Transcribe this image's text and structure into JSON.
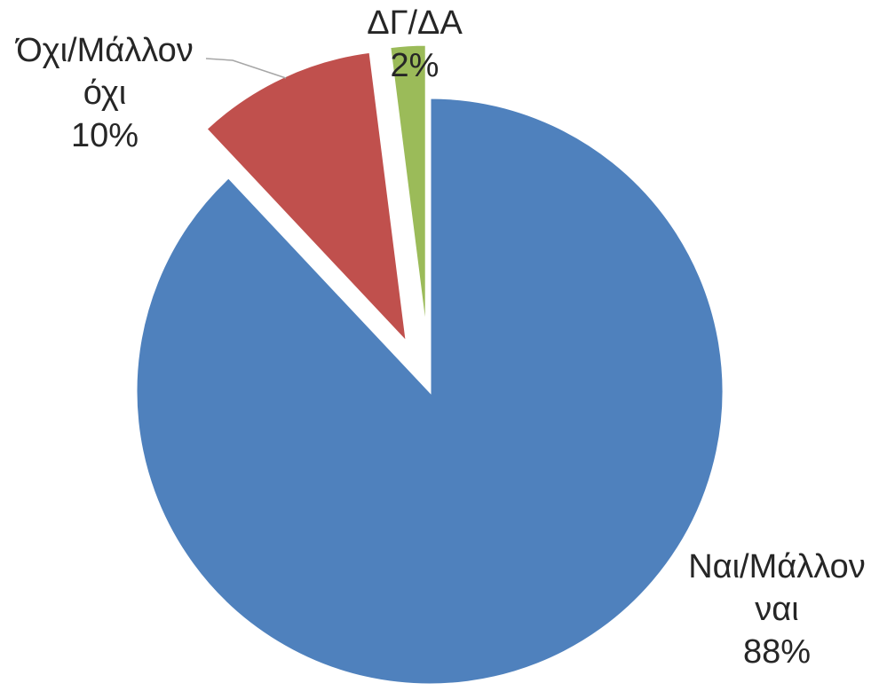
{
  "chart_data": {
    "type": "pie",
    "categories": [
      "Ναι/Μάλλον ναι",
      "Όχι/Μάλλον όχι",
      "ΔΓ/ΔΑ"
    ],
    "values": [
      88,
      10,
      2
    ],
    "value_labels": [
      "88%",
      "10%",
      "2%"
    ],
    "colors": [
      "#4f81bd",
      "#c0504d",
      "#9bbb59"
    ]
  }
}
